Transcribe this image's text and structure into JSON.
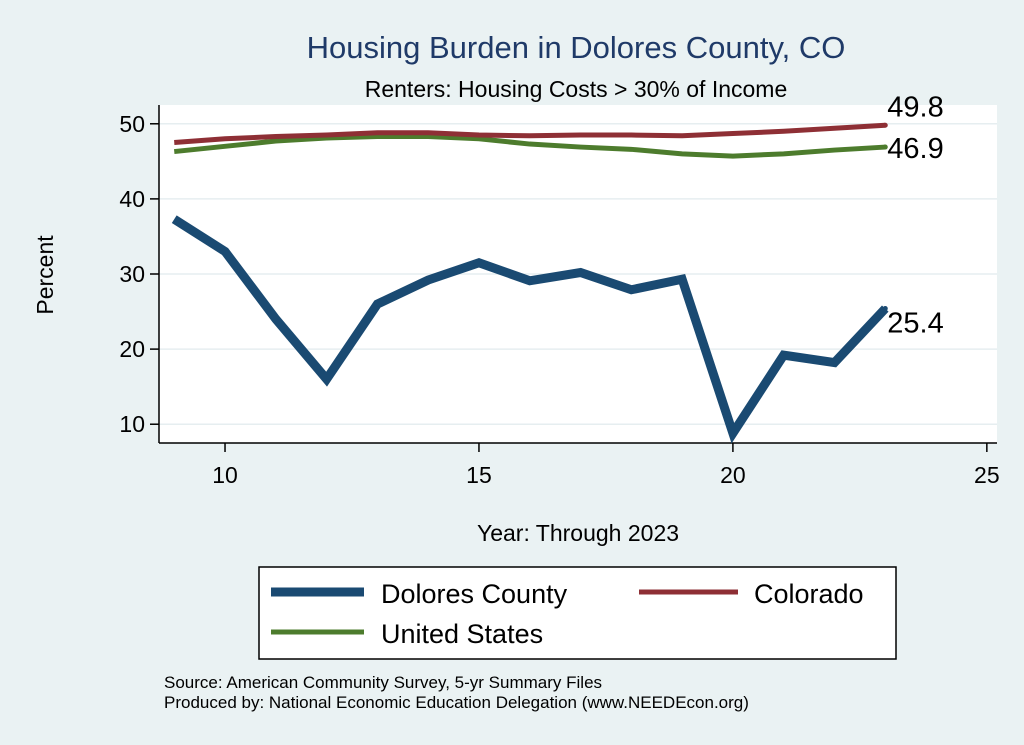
{
  "chart_data": {
    "type": "line",
    "title": "Housing Burden in Dolores County, CO",
    "subtitle": "Renters: Housing Costs > 30% of Income",
    "xlabel": "Year: Through 2023",
    "ylabel": "Percent",
    "xlim": [
      8.7,
      25.2
    ],
    "ylim": [
      7.5,
      52.5
    ],
    "xticks": [
      10,
      15,
      20,
      25
    ],
    "yticks": [
      10,
      20,
      30,
      40,
      50
    ],
    "x": [
      9,
      10,
      11,
      12,
      13,
      14,
      15,
      16,
      17,
      18,
      19,
      20,
      21,
      22,
      23
    ],
    "series": [
      {
        "name": "Dolores County",
        "color": "#1a4a72",
        "values": [
          37.3,
          33.0,
          24.0,
          16.0,
          26.0,
          29.2,
          31.5,
          29.1,
          30.2,
          27.9,
          29.3,
          8.8,
          19.2,
          18.2,
          25.4
        ],
        "end_label": "25.4"
      },
      {
        "name": "Colorado",
        "color": "#8e2f35",
        "values": [
          47.5,
          48.0,
          48.3,
          48.5,
          48.8,
          48.8,
          48.5,
          48.4,
          48.5,
          48.5,
          48.4,
          48.7,
          49.0,
          49.4,
          49.8
        ],
        "end_label": "49.8"
      },
      {
        "name": "United States",
        "color": "#4d7c2d",
        "values": [
          46.3,
          47.0,
          47.7,
          48.1,
          48.3,
          48.3,
          48.0,
          47.3,
          46.9,
          46.6,
          46.0,
          45.7,
          46.0,
          46.5,
          46.9
        ],
        "end_label": "46.9"
      }
    ],
    "legend": {
      "position": "bottom",
      "items": [
        "Dolores County",
        "Colorado",
        "United States"
      ]
    },
    "source_lines": [
      "Source: American Community Survey, 5-yr Summary Files",
      "Produced by: National Economic Education Delegation (www.NEEDEcon.org)"
    ],
    "grid": true
  }
}
